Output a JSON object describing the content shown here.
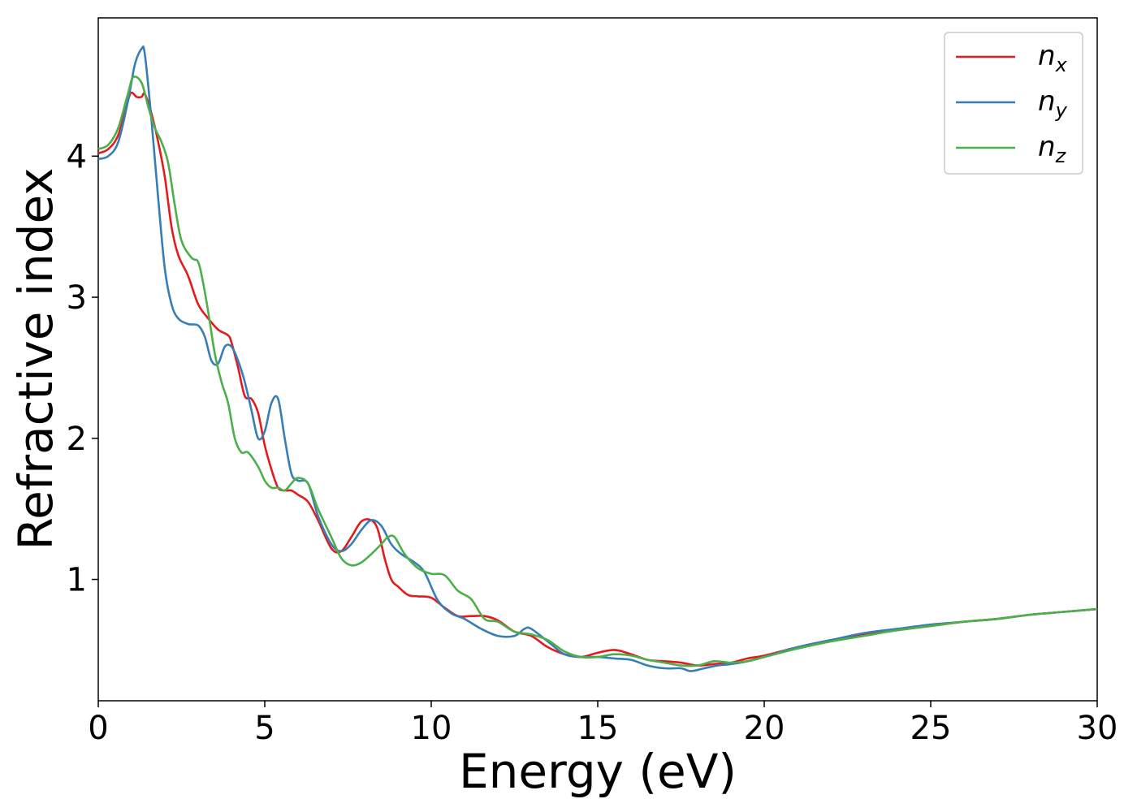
{
  "chart_data": {
    "type": "line",
    "title": "",
    "xlabel": "Energy (eV)",
    "ylabel": "Refractive index",
    "xlim": [
      0,
      30
    ],
    "ylim": [
      0.14,
      4.98
    ],
    "xticks": [
      0,
      5,
      10,
      15,
      20,
      25,
      30
    ],
    "yticks": [
      1,
      2,
      3,
      4
    ],
    "grid": false,
    "legend_position": "top-right",
    "series": [
      {
        "name": "n",
        "subscript": "x",
        "color": "#e41a1c",
        "x": [
          0,
          0.3,
          0.6,
          0.9,
          1.0,
          1.15,
          1.3,
          1.4,
          1.6,
          1.8,
          2.0,
          2.2,
          2.4,
          2.7,
          3.0,
          3.3,
          3.6,
          3.9,
          4.0,
          4.2,
          4.4,
          4.6,
          4.8,
          5.0,
          5.2,
          5.4,
          5.6,
          5.8,
          6.0,
          6.3,
          6.6,
          7.0,
          7.3,
          7.6,
          7.9,
          8.2,
          8.4,
          8.6,
          8.8,
          9.0,
          9.3,
          9.6,
          10.0,
          10.4,
          10.8,
          11.2,
          11.6,
          12.0,
          12.5,
          13.0,
          13.5,
          14.0,
          14.5,
          15.0,
          15.5,
          16.0,
          16.5,
          17.0,
          17.5,
          18.0,
          18.5,
          19.0,
          19.5,
          20.0,
          21.0,
          22.0,
          23.0,
          24.0,
          25.0,
          26.0,
          27.0,
          28.0,
          29.0,
          30.0
        ],
        "y": [
          4.02,
          4.05,
          4.15,
          4.4,
          4.45,
          4.42,
          4.42,
          4.44,
          4.3,
          4.1,
          3.85,
          3.5,
          3.3,
          3.15,
          2.95,
          2.85,
          2.77,
          2.73,
          2.68,
          2.5,
          2.3,
          2.28,
          2.18,
          1.95,
          1.78,
          1.65,
          1.63,
          1.63,
          1.6,
          1.55,
          1.42,
          1.22,
          1.2,
          1.3,
          1.41,
          1.42,
          1.35,
          1.15,
          1.0,
          0.95,
          0.89,
          0.88,
          0.87,
          0.8,
          0.74,
          0.74,
          0.74,
          0.71,
          0.63,
          0.6,
          0.52,
          0.47,
          0.45,
          0.48,
          0.5,
          0.47,
          0.43,
          0.42,
          0.41,
          0.39,
          0.4,
          0.41,
          0.44,
          0.46,
          0.52,
          0.57,
          0.61,
          0.64,
          0.67,
          0.7,
          0.72,
          0.75,
          0.77,
          0.79
        ]
      },
      {
        "name": "n",
        "subscript": "y",
        "color": "#377eb8",
        "x": [
          0,
          0.3,
          0.6,
          0.9,
          1.1,
          1.3,
          1.4,
          1.6,
          1.8,
          2.0,
          2.2,
          2.4,
          2.7,
          3.0,
          3.2,
          3.4,
          3.6,
          3.8,
          4.0,
          4.2,
          4.4,
          4.6,
          4.8,
          5.0,
          5.2,
          5.4,
          5.6,
          5.8,
          6.0,
          6.3,
          6.6,
          7.0,
          7.3,
          7.6,
          7.9,
          8.2,
          8.5,
          8.8,
          9.1,
          9.5,
          9.8,
          10.2,
          10.6,
          11.0,
          11.5,
          12.0,
          12.5,
          12.8,
          13.0,
          13.5,
          14.0,
          14.5,
          15.0,
          15.5,
          16.0,
          16.5,
          17.0,
          17.5,
          17.8,
          18.2,
          18.6,
          19.0,
          19.5,
          20.0,
          21.0,
          22.0,
          23.0,
          24.0,
          25.0,
          26.0,
          27.0,
          28.0,
          29.0,
          30.0
        ],
        "y": [
          3.98,
          4.0,
          4.1,
          4.4,
          4.65,
          4.76,
          4.72,
          4.25,
          3.7,
          3.2,
          2.95,
          2.85,
          2.81,
          2.8,
          2.72,
          2.55,
          2.53,
          2.65,
          2.65,
          2.55,
          2.4,
          2.2,
          2.0,
          2.05,
          2.25,
          2.28,
          2.0,
          1.75,
          1.7,
          1.68,
          1.45,
          1.25,
          1.2,
          1.25,
          1.35,
          1.42,
          1.38,
          1.25,
          1.18,
          1.12,
          1.05,
          0.85,
          0.76,
          0.72,
          0.65,
          0.6,
          0.6,
          0.65,
          0.65,
          0.56,
          0.47,
          0.45,
          0.45,
          0.44,
          0.43,
          0.39,
          0.37,
          0.37,
          0.35,
          0.37,
          0.39,
          0.4,
          0.42,
          0.45,
          0.52,
          0.57,
          0.62,
          0.65,
          0.68,
          0.7,
          0.72,
          0.75,
          0.77,
          0.79
        ]
      },
      {
        "name": "n",
        "subscript": "z",
        "color": "#4daf4a",
        "x": [
          0,
          0.3,
          0.6,
          0.9,
          1.05,
          1.3,
          1.5,
          1.7,
          1.9,
          2.1,
          2.3,
          2.5,
          2.8,
          3.0,
          3.15,
          3.3,
          3.5,
          3.7,
          3.9,
          4.1,
          4.3,
          4.5,
          4.8,
          5.0,
          5.2,
          5.4,
          5.6,
          5.8,
          6.0,
          6.3,
          6.6,
          7.0,
          7.3,
          7.6,
          7.9,
          8.2,
          8.5,
          8.7,
          8.9,
          9.2,
          9.6,
          10.0,
          10.4,
          10.8,
          11.2,
          11.6,
          12.0,
          12.5,
          13.0,
          13.5,
          14.0,
          14.5,
          15.0,
          15.5,
          16.0,
          16.5,
          17.0,
          17.5,
          18.0,
          18.5,
          19.0,
          19.5,
          20.0,
          21.0,
          22.0,
          23.0,
          24.0,
          25.0,
          26.0,
          27.0,
          28.0,
          29.0,
          30.0
        ],
        "y": [
          4.05,
          4.08,
          4.2,
          4.45,
          4.56,
          4.52,
          4.35,
          4.2,
          4.1,
          3.95,
          3.65,
          3.4,
          3.28,
          3.25,
          3.1,
          2.9,
          2.6,
          2.4,
          2.25,
          2.0,
          1.9,
          1.9,
          1.8,
          1.7,
          1.65,
          1.65,
          1.63,
          1.68,
          1.72,
          1.68,
          1.5,
          1.3,
          1.15,
          1.1,
          1.12,
          1.18,
          1.25,
          1.3,
          1.3,
          1.18,
          1.08,
          1.04,
          1.03,
          0.92,
          0.86,
          0.72,
          0.7,
          0.63,
          0.61,
          0.57,
          0.49,
          0.45,
          0.45,
          0.47,
          0.46,
          0.43,
          0.41,
          0.39,
          0.39,
          0.42,
          0.41,
          0.42,
          0.45,
          0.51,
          0.56,
          0.6,
          0.64,
          0.67,
          0.7,
          0.72,
          0.75,
          0.77,
          0.79
        ]
      }
    ]
  }
}
